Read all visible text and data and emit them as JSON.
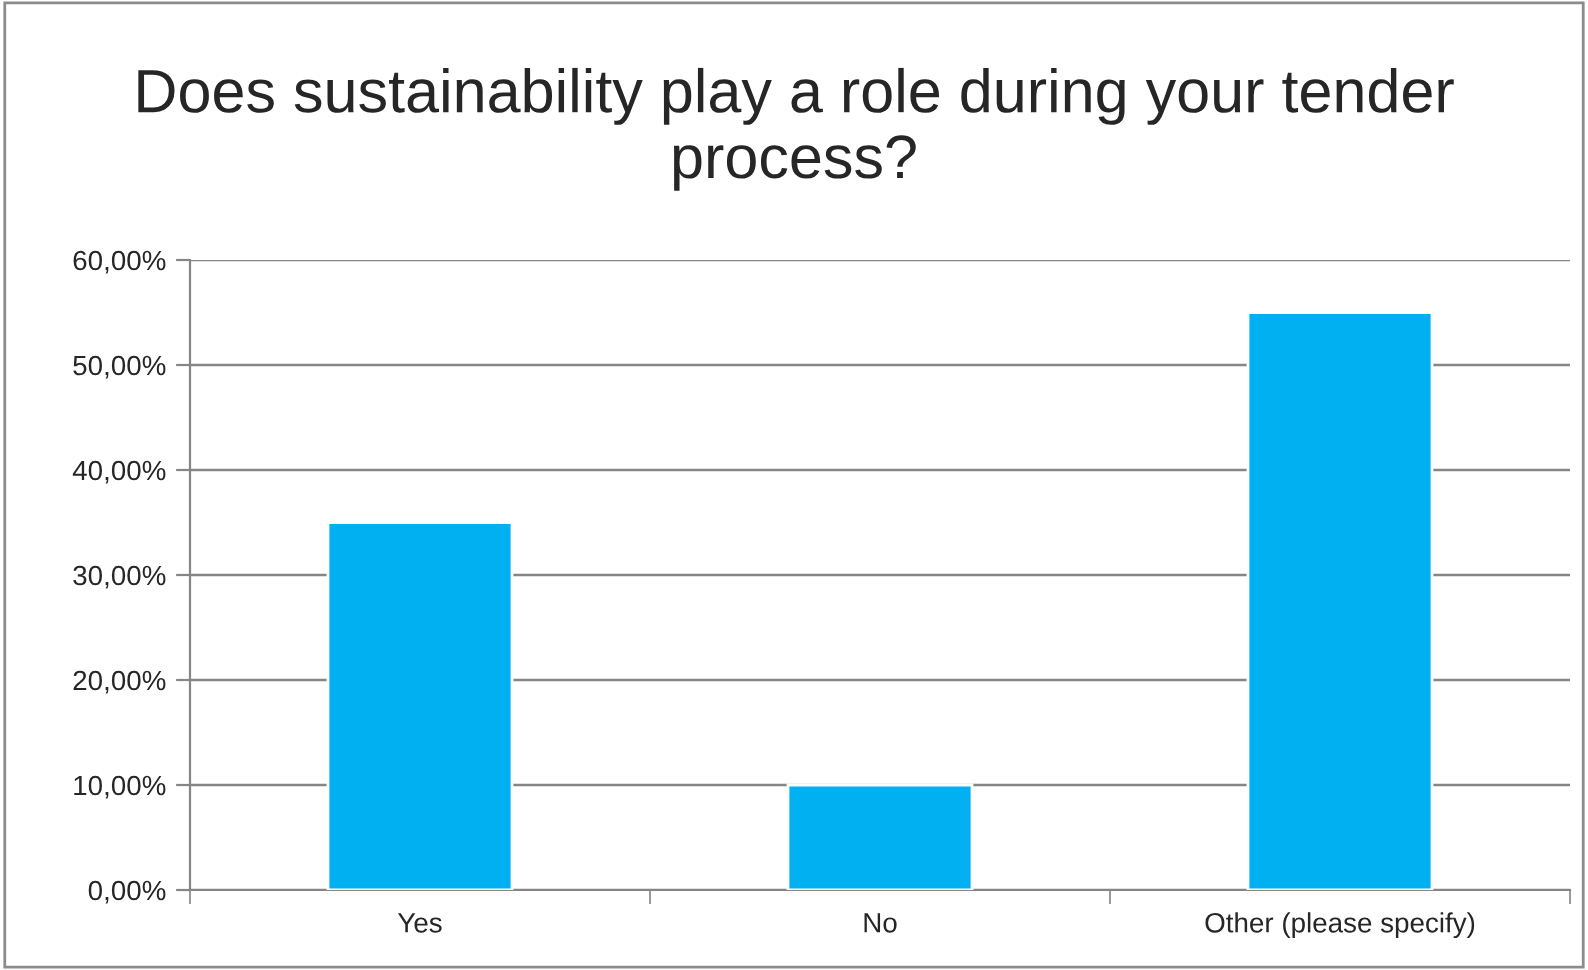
{
  "chart_data": {
    "type": "bar",
    "title": "Does sustainability play a role during your tender process?",
    "categories": [
      "Yes",
      "No",
      "Other (please specify)"
    ],
    "values": [
      35,
      10,
      55
    ],
    "color": "#00b0f0",
    "ylim": [
      0,
      60
    ],
    "yticks": [
      {
        "value": 0,
        "label": "0,00%"
      },
      {
        "value": 10,
        "label": "10,00%"
      },
      {
        "value": 20,
        "label": "20,00%"
      },
      {
        "value": 30,
        "label": "30,00%"
      },
      {
        "value": 40,
        "label": "40,00%"
      },
      {
        "value": 50,
        "label": "50,00%"
      },
      {
        "value": 60,
        "label": "60,00%"
      }
    ],
    "grid": "y",
    "legend": false
  }
}
